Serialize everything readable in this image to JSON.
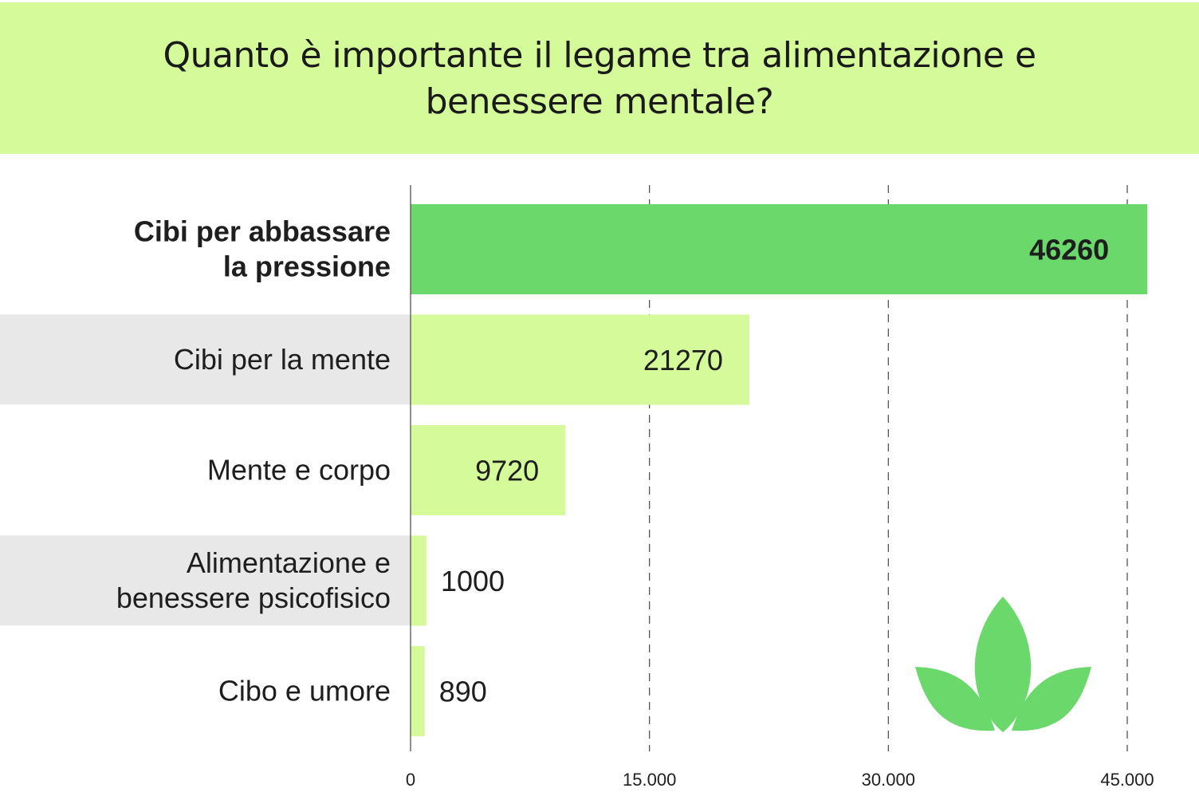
{
  "chart_data": {
    "type": "bar",
    "orientation": "horizontal",
    "title": "Quanto è importante il legame tra alimentazione e benessere mentale?",
    "categories": [
      "Cibi per abbassare la pressione",
      "Cibi per la mente",
      "Mente e corpo",
      "Alimentazione e benessere psicofisico",
      "Cibo e umore"
    ],
    "category_lines": [
      [
        "Cibi per abbassare",
        "la pressione"
      ],
      [
        "Cibi per la mente"
      ],
      [
        "Mente e corpo"
      ],
      [
        "Alimentazione e",
        "benessere psicofisico"
      ],
      [
        "Cibo e umore"
      ]
    ],
    "values": [
      46260,
      21270,
      9720,
      1000,
      890
    ],
    "value_labels": [
      "46260",
      "21270",
      "9720",
      "1000",
      "890"
    ],
    "highlight_index": 0,
    "xlim": [
      0,
      45000
    ],
    "xticks": [
      0,
      15000,
      30000,
      45000
    ],
    "xtick_labels": [
      "0",
      "15.000",
      "30.000",
      "45.000"
    ],
    "grid": true,
    "xlabel": "",
    "ylabel": ""
  },
  "colors": {
    "header_bg": "#d4fa9a",
    "highlight_bar": "#6bd86b",
    "other_bar": "#d4fa9a",
    "row_stripe": "#e8e8e8",
    "logo": "#6bd86b"
  },
  "logo_icon": "leaf-logo-icon"
}
